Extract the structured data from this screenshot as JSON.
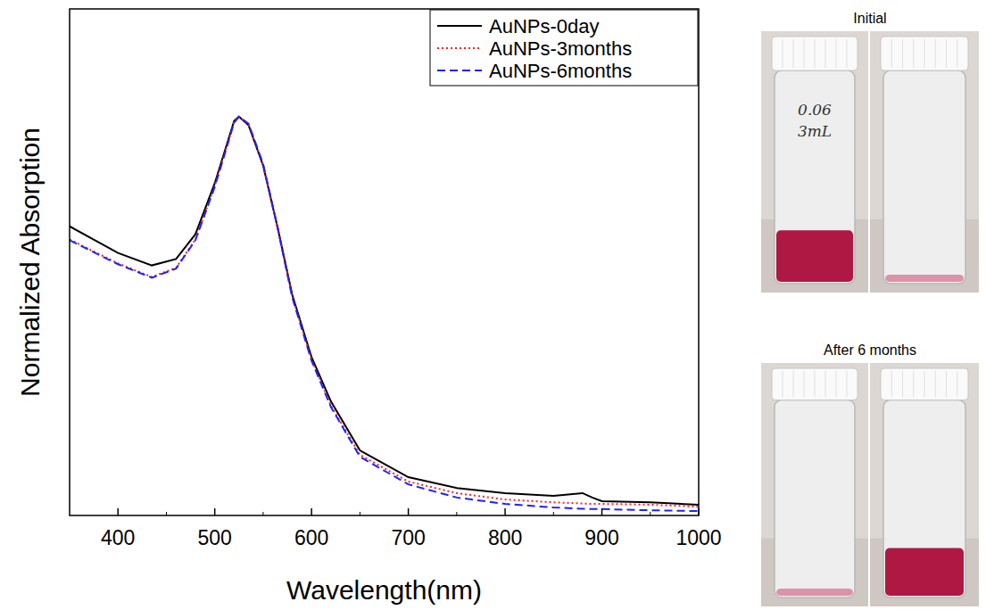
{
  "chart_data": {
    "type": "line",
    "x_label": "Wavelength(nm)",
    "y_label": "Normalized Absorption",
    "x": [
      350,
      400,
      435,
      460,
      480,
      500,
      510,
      520,
      525,
      535,
      550,
      565,
      580,
      600,
      620,
      650,
      700,
      750,
      800,
      850,
      880,
      890,
      900,
      950,
      1000
    ],
    "series": [
      {
        "name": "AuNPs-0day",
        "color": "#000000",
        "line_style": "solid",
        "values": [
          0.725,
          0.658,
          0.627,
          0.643,
          0.705,
          0.833,
          0.911,
          0.989,
          1.0,
          0.978,
          0.877,
          0.721,
          0.554,
          0.397,
          0.286,
          0.163,
          0.096,
          0.069,
          0.056,
          0.049,
          0.056,
          0.045,
          0.036,
          0.033,
          0.027
        ]
      },
      {
        "name": "AuNPs-3months",
        "color": "#ff2020",
        "line_style": "dotted",
        "values": [
          0.692,
          0.632,
          0.598,
          0.621,
          0.692,
          0.826,
          0.906,
          0.987,
          1.0,
          0.98,
          0.879,
          0.721,
          0.549,
          0.391,
          0.275,
          0.152,
          0.085,
          0.056,
          0.04,
          0.033,
          0.03,
          0.029,
          0.029,
          0.027,
          0.022
        ]
      },
      {
        "name": "AuNPs-6months",
        "color": "#2020ff",
        "line_style": "dashed",
        "values": [
          0.69,
          0.63,
          0.596,
          0.619,
          0.69,
          0.824,
          0.904,
          0.985,
          1.0,
          0.982,
          0.881,
          0.721,
          0.547,
          0.388,
          0.272,
          0.147,
          0.078,
          0.045,
          0.029,
          0.02,
          0.017,
          0.016,
          0.016,
          0.013,
          0.011
        ]
      }
    ],
    "xlim": [
      350,
      1000
    ],
    "xticks": [
      400,
      500,
      600,
      700,
      800,
      900,
      1000
    ],
    "ylim": [
      0,
      1.27
    ],
    "tick_labels": "x",
    "legend": "upper right"
  },
  "photos": {
    "panels": [
      {
        "title": "Initial"
      },
      {
        "title": "After 6 months"
      }
    ],
    "vial_label": "0.06 3mL"
  }
}
